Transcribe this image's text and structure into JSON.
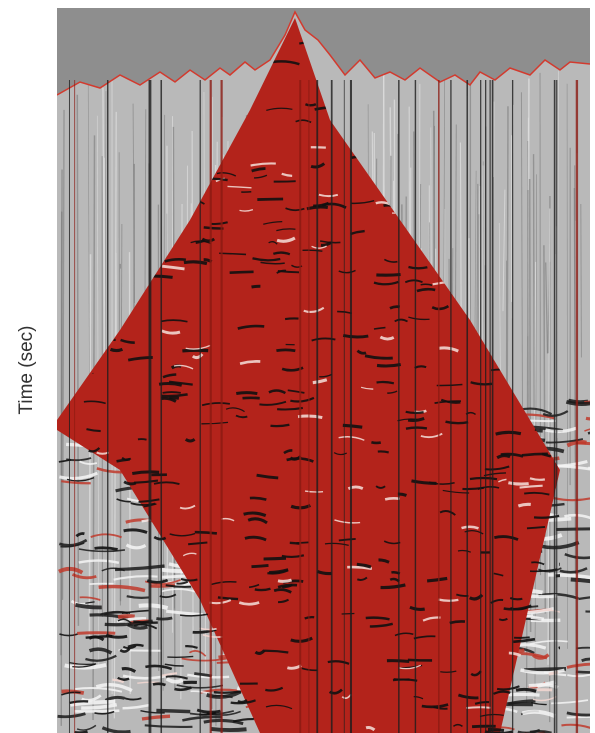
{
  "figure": {
    "y_axis_label": "Time (sec)"
  }
}
